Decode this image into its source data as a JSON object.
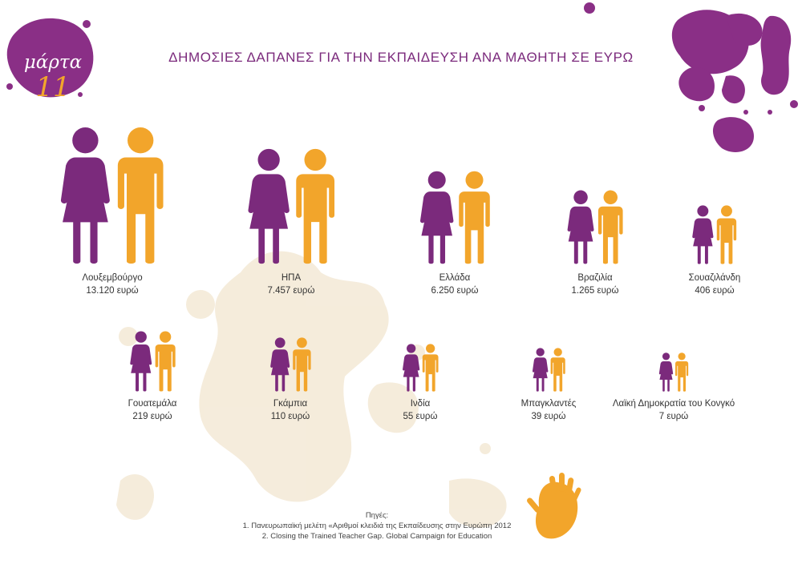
{
  "badge": {
    "title": "μάρτα",
    "number": "11"
  },
  "title": "ΔΗΜΟΣΙΕΣ ΔΑΠΑΝΕΣ  ΓΙΑ ΤΗΝ ΕΚΠΑΙΔΕΥΣΗ ΑΝΑ ΜΑΘΗΤΗ ΣΕ ΕΥΡΩ",
  "colors": {
    "female": "#7b2a7c",
    "male": "#f2a52b",
    "splash": "#f4ead8"
  },
  "chart_data": {
    "type": "pictogram",
    "unit": "ευρώ",
    "countries": [
      {
        "name": "Λουξεμβούργο",
        "value_label": "13.120 ευρώ",
        "value": 13120
      },
      {
        "name": "ΗΠΑ",
        "value_label": "7.457 ευρώ",
        "value": 7457
      },
      {
        "name": "Ελλάδα",
        "value_label": "6.250 ευρώ",
        "value": 6250
      },
      {
        "name": "Βραζιλία",
        "value_label": "1.265 ευρώ",
        "value": 1265
      },
      {
        "name": "Σουαζιλάνδη",
        "value_label": "406 ευρώ",
        "value": 406
      },
      {
        "name": "Γουατεμάλα",
        "value_label": "219 ευρώ",
        "value": 219
      },
      {
        "name": "Γκάμπια",
        "value_label": "110 ευρώ",
        "value": 110
      },
      {
        "name": "Ινδία",
        "value_label": "55 ευρώ",
        "value": 55
      },
      {
        "name": "Μπαγκλαντές",
        "value_label": "39 ευρώ",
        "value": 39
      },
      {
        "name": "Λαϊκή Δημοκρατία του Κονγκό",
        "value_label": "7 ευρώ",
        "value": 7
      }
    ]
  },
  "sources": {
    "heading": "Πηγές:",
    "items": [
      "1. Πανευρωπαϊκή μελέτη «Αριθμοί κλειδιά της Εκπαίδευσης στην Ευρώπη 2012",
      "2. Closing the Trained Teacher Gap. Global Campaign for Education"
    ]
  }
}
